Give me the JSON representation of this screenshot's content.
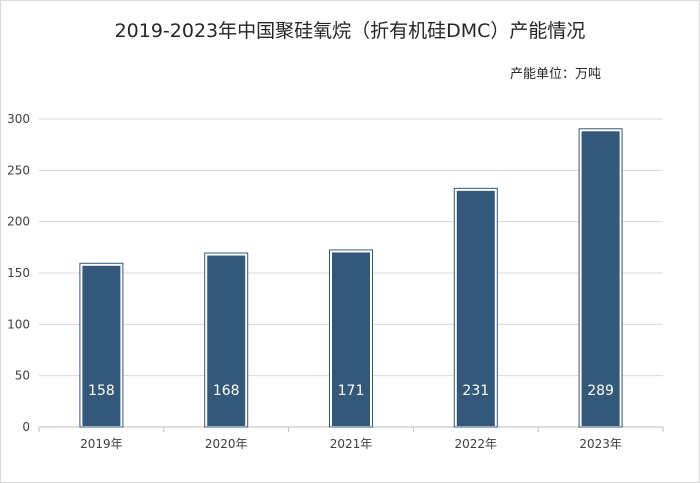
{
  "chart_data": {
    "type": "bar",
    "title": "2019-2023年中国聚硅氧烷（折有机硅DMC）产能情况",
    "subtitle": "产能单位：万吨",
    "categories": [
      "2019年",
      "2020年",
      "2021年",
      "2022年",
      "2023年"
    ],
    "values": [
      158,
      168,
      171,
      231,
      289
    ],
    "data_labels": [
      "158",
      "168",
      "171",
      "231",
      "289"
    ],
    "ylim": [
      0,
      300
    ],
    "yticks": [
      0,
      50,
      100,
      150,
      200,
      250,
      300
    ],
    "ytick_labels": [
      "0",
      "50",
      "100",
      "150",
      "200",
      "250",
      "300"
    ],
    "grid": true,
    "legend": "none",
    "bar_color": "#34587a",
    "bar_edge_color": "#ffffff",
    "grid_color": "#d9d9d9"
  }
}
